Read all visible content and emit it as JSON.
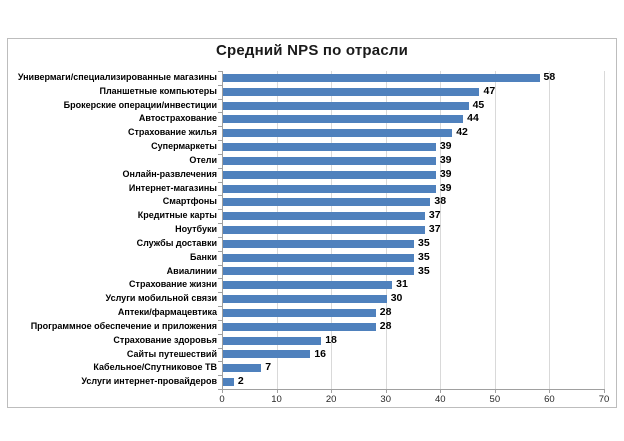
{
  "chart_data": {
    "type": "bar",
    "orientation": "horizontal",
    "title": "Средний NPS по отрасли",
    "categories": [
      "Универмаги/специализированные магазины",
      "Планшетные компьютеры",
      "Брокерские операции/инвестиции",
      "Автострахование",
      "Страхование жилья",
      "Супермаркеты",
      "Отели",
      "Онлайн-развлечения",
      "Интернет-магазины",
      "Смартфоны",
      "Кредитные карты",
      "Ноутбуки",
      "Службы доставки",
      "Банки",
      "Авиалинии",
      "Страхование жизни",
      "Услуги мобильной связи",
      "Аптеки/фармацевтика",
      "Программное обеспечение и приложения",
      "Страхование здоровья",
      "Сайты путешествий",
      "Кабельное/Спутниковое ТВ",
      "Услуги интернет-провайдеров"
    ],
    "values": [
      58,
      47,
      45,
      44,
      42,
      39,
      39,
      39,
      39,
      38,
      37,
      37,
      35,
      35,
      35,
      31,
      30,
      28,
      28,
      18,
      16,
      7,
      2
    ],
    "xlabel": "",
    "ylabel": "",
    "xlim": [
      0,
      70
    ],
    "xticks": [
      0,
      10,
      20,
      30,
      40,
      50,
      60,
      70
    ],
    "grid": "vertical-major",
    "legend": "none",
    "data_labels": "outside-end"
  },
  "colors": {
    "bar": "#4F81BD",
    "gridline": "#D9D9D9",
    "axis": "#A0A0A0",
    "frame_border": "#BDBDBD",
    "background": "#FFFFFF",
    "title_text": "#1A1A1A",
    "category_text": "#000000",
    "value_text": "#000000",
    "tick_text": "#262626"
  }
}
